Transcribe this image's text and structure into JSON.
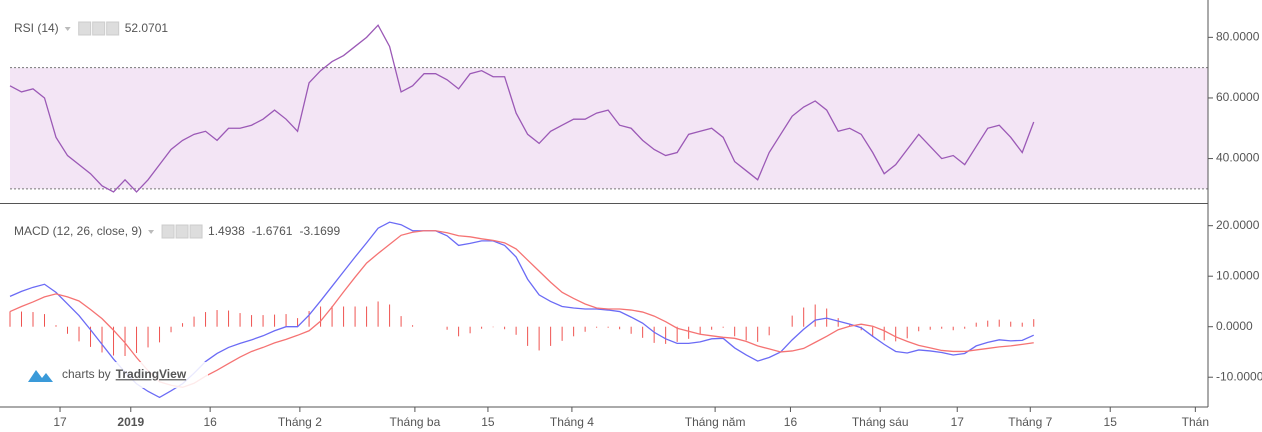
{
  "chart_data": [
    {
      "type": "line",
      "title": "RSI (14)",
      "x": [
        0,
        2,
        4,
        6,
        8,
        10,
        12,
        14,
        16,
        18,
        20,
        22,
        24,
        26,
        28,
        30,
        32,
        34,
        36,
        38,
        40,
        42,
        44,
        46,
        48,
        50,
        52,
        54,
        56,
        58,
        60,
        62,
        64,
        66,
        68,
        70,
        72,
        74,
        76,
        78,
        80,
        82,
        84,
        86,
        88,
        90,
        92,
        94,
        96,
        98,
        100,
        102,
        104,
        106,
        108,
        110,
        112,
        114,
        116,
        118,
        120,
        122,
        124,
        126,
        128,
        130,
        132,
        134,
        136,
        138,
        140,
        142,
        144,
        146,
        148,
        150,
        152,
        154,
        156,
        158,
        160,
        162,
        164,
        166,
        168,
        170,
        172,
        174,
        176,
        178
      ],
      "series": [
        {
          "color": "#9b59b6",
          "value_label": "52.0701",
          "values": [
            64,
            62,
            63,
            60,
            47,
            41,
            38,
            35,
            31,
            29,
            33,
            29,
            33,
            38,
            43,
            46,
            48,
            49,
            46,
            50,
            50,
            51,
            53,
            56,
            53,
            49,
            65,
            69,
            72,
            74,
            77,
            80,
            84,
            77,
            62,
            64,
            68,
            68,
            66,
            63,
            68,
            69,
            67,
            67,
            55,
            48,
            45,
            49,
            51,
            53,
            53,
            55,
            56,
            51,
            50,
            46,
            43,
            41,
            42,
            48,
            49,
            50,
            47,
            39,
            36,
            33,
            42,
            48,
            54,
            57,
            59,
            56,
            49,
            50,
            48,
            42,
            35,
            38,
            43,
            48,
            44,
            40,
            41,
            38,
            44,
            50,
            51,
            47,
            42,
            52.0701
          ]
        }
      ],
      "band": [
        30,
        70
      ],
      "band_color": "#f3e5f5",
      "xlim": [
        0,
        208.3
      ],
      "ylim": [
        26,
        91
      ],
      "yticks": [
        {
          "value": 40,
          "label": "40.0000"
        },
        {
          "value": 60,
          "label": "60.0000"
        },
        {
          "value": 80,
          "label": "80.0000"
        }
      ]
    },
    {
      "type": "macd",
      "title": "MACD (12, 26, close, 9)",
      "x": [
        0,
        2,
        4,
        6,
        8,
        10,
        12,
        14,
        16,
        18,
        20,
        22,
        24,
        26,
        28,
        30,
        32,
        34,
        36,
        38,
        40,
        42,
        44,
        46,
        48,
        50,
        52,
        54,
        56,
        58,
        60,
        62,
        64,
        66,
        68,
        70,
        72,
        74,
        76,
        78,
        80,
        82,
        84,
        86,
        88,
        90,
        92,
        94,
        96,
        98,
        100,
        102,
        104,
        106,
        108,
        110,
        112,
        114,
        116,
        118,
        120,
        122,
        124,
        126,
        128,
        130,
        132,
        134,
        136,
        138,
        140,
        142,
        144,
        146,
        148,
        150,
        152,
        154,
        156,
        158,
        160,
        162,
        164,
        166,
        168,
        170,
        172,
        174,
        176,
        178
      ],
      "series": [
        {
          "type": "bar",
          "color": "#ef5350",
          "value_label": "1.4938",
          "values": [
            3,
            3,
            2.9,
            2.5,
            0.3,
            -1.4,
            -2.9,
            -4,
            -5.1,
            -5.7,
            -5.8,
            -5.2,
            -4.1,
            -3.1,
            -1.1,
            0.7,
            2,
            2.9,
            3.3,
            3.2,
            2.7,
            2.3,
            2.3,
            2.4,
            2.5,
            1.7,
            3.1,
            4,
            4.1,
            4,
            4,
            4,
            5,
            4.4,
            2.1,
            0.3,
            0,
            0,
            -0.6,
            -1.9,
            -1.3,
            -0.4,
            -0.1,
            -0.5,
            -1.6,
            -3.8,
            -4.7,
            -3.8,
            -2.8,
            -1.9,
            -1,
            -0.2,
            -0.2,
            -0.5,
            -1.4,
            -2.2,
            -3.2,
            -3.4,
            -3,
            -2.4,
            -1.5,
            -0.6,
            -0.2,
            -1.9,
            -2.7,
            -3,
            -1.7,
            0,
            2.2,
            3.8,
            4.4,
            3.6,
            1.7,
            0.4,
            -0.7,
            -2,
            -2.7,
            -2.9,
            -2.3,
            -0.9,
            -0.6,
            -0.4,
            -0.7,
            -0.4,
            0.8,
            1.2,
            1.4,
            1,
            0.8,
            1.4938
          ]
        },
        {
          "type": "line",
          "color": "#6b6bf5",
          "value_label": "-1.6761",
          "values": [
            6,
            7,
            7.8,
            8.4,
            6.8,
            4.5,
            2.2,
            -0.6,
            -3.5,
            -6.4,
            -9,
            -11.3,
            -12.8,
            -14,
            -12.7,
            -11.3,
            -9.2,
            -6.9,
            -5.3,
            -4.1,
            -3.3,
            -2.6,
            -1.8,
            -0.8,
            0,
            0,
            2.3,
            5.1,
            8,
            10.9,
            13.8,
            16.6,
            19.5,
            20.7,
            20.2,
            19,
            19,
            19,
            18,
            16.1,
            16.5,
            17,
            17,
            16.1,
            13.8,
            9.4,
            6.3,
            5,
            4,
            3.7,
            3.5,
            3.5,
            3.3,
            3,
            1.9,
            0.7,
            -1.1,
            -2.4,
            -3.3,
            -3.3,
            -3,
            -2.4,
            -2.3,
            -4.2,
            -5.6,
            -6.8,
            -6.1,
            -5,
            -2.6,
            -0.5,
            1.3,
            1.7,
            1.1,
            0.5,
            -0.2,
            -1.9,
            -3.5,
            -4.9,
            -5.2,
            -4.6,
            -4.8,
            -5.1,
            -5.6,
            -5.3,
            -3.8,
            -3.1,
            -2.6,
            -2.8,
            -2.7,
            -1.6761
          ]
        },
        {
          "type": "line",
          "color": "#f57373",
          "value_label": "-3.1699",
          "values": [
            3,
            4,
            4.9,
            5.9,
            6.5,
            5.9,
            5.1,
            3.4,
            1.6,
            -0.7,
            -3.2,
            -6.1,
            -8.7,
            -10.9,
            -11.6,
            -12,
            -11.2,
            -9.8,
            -8.6,
            -7.3,
            -6,
            -4.9,
            -4.1,
            -3.2,
            -2.5,
            -1.7,
            -0.8,
            1.1,
            3.9,
            6.9,
            9.8,
            12.6,
            14.5,
            16.3,
            18.1,
            18.7,
            19,
            19,
            18.6,
            18,
            17.8,
            17.4,
            17.1,
            16.6,
            15.4,
            13.2,
            11,
            8.8,
            6.8,
            5.6,
            4.5,
            3.7,
            3.5,
            3.5,
            3.3,
            2.9,
            2.1,
            1,
            -0.3,
            -0.9,
            -1.5,
            -1.8,
            -2.1,
            -2.3,
            -2.9,
            -3.8,
            -4.4,
            -5,
            -4.8,
            -4.3,
            -3.1,
            -1.9,
            -0.6,
            0.1,
            0.5,
            0.1,
            -0.8,
            -2,
            -2.9,
            -3.7,
            -4.2,
            -4.7,
            -4.9,
            -4.9,
            -4.6,
            -4.3,
            -4,
            -3.8,
            -3.5,
            -3.1699
          ]
        }
      ],
      "xlim": [
        0,
        208.3
      ],
      "ylim": [
        -15.5,
        23.7
      ],
      "yticks": [
        {
          "value": -10,
          "label": "-10.0000"
        },
        {
          "value": 0,
          "label": "0.0000"
        },
        {
          "value": 10,
          "label": "10.0000"
        },
        {
          "value": 20,
          "label": "20.0000"
        }
      ],
      "xticks": [
        {
          "value": 8.7,
          "label": "17"
        },
        {
          "value": 21,
          "label": "2019"
        },
        {
          "value": 34.8,
          "label": "16"
        },
        {
          "value": 50.4,
          "label": "Tháng 2"
        },
        {
          "value": 70.4,
          "label": "Tháng ba"
        },
        {
          "value": 83.1,
          "label": "15"
        },
        {
          "value": 97.7,
          "label": "Tháng 4"
        },
        {
          "value": 122.6,
          "label": "Tháng năm"
        },
        {
          "value": 135.7,
          "label": "16"
        },
        {
          "value": 151.3,
          "label": "Tháng sáu"
        },
        {
          "value": 164.7,
          "label": "17"
        },
        {
          "value": 177.4,
          "label": "Tháng 7"
        },
        {
          "value": 191.3,
          "label": "15"
        },
        {
          "value": 206.1,
          "label": "Thán"
        }
      ]
    }
  ],
  "watermark": [
    "charts by",
    "TradingView"
  ]
}
